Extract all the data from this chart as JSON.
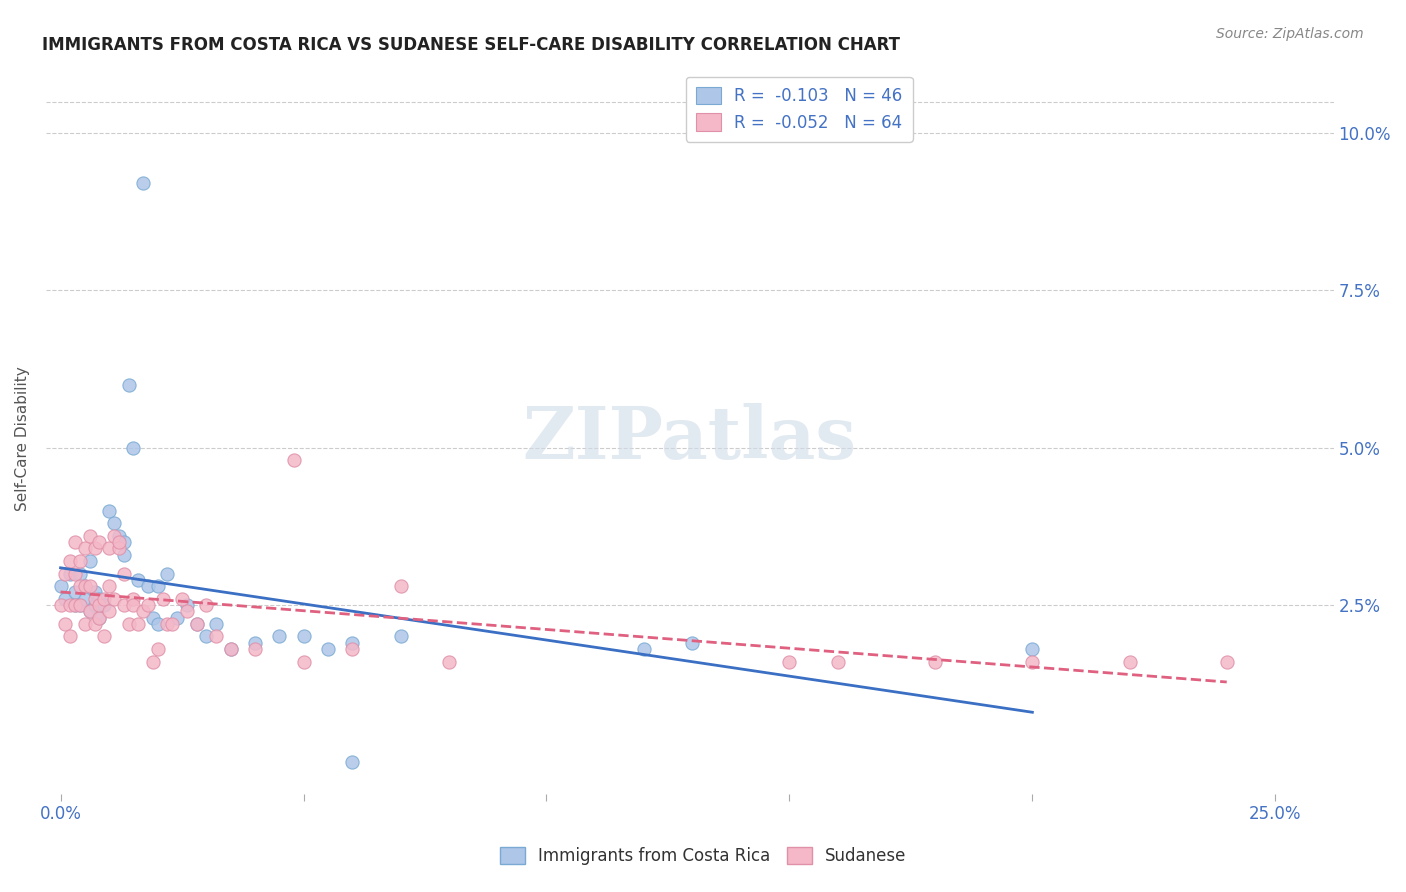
{
  "title": "IMMIGRANTS FROM COSTA RICA VS SUDANESE SELF-CARE DISABILITY CORRELATION CHART",
  "source": "Source: ZipAtlas.com",
  "ylabel": "Self-Care Disability",
  "xlim": [
    -0.003,
    0.262
  ],
  "ylim": [
    -0.005,
    0.108
  ],
  "x_tick_positions": [
    0.0,
    0.05,
    0.1,
    0.15,
    0.2,
    0.25
  ],
  "x_tick_labels": [
    "0.0%",
    "",
    "",
    "",
    "",
    "25.0%"
  ],
  "y_tick_positions": [
    0.0,
    0.025,
    0.05,
    0.075,
    0.1
  ],
  "y_tick_labels": [
    "",
    "2.5%",
    "5.0%",
    "7.5%",
    "10.0%"
  ],
  "legend_entries": [
    {
      "label": "Immigrants from Costa Rica",
      "color": "#aec6e8",
      "r": "-0.103",
      "n": "46"
    },
    {
      "label": "Sudanese",
      "color": "#f4b8c8",
      "r": "-0.052",
      "n": "64"
    }
  ],
  "costa_rica_x": [
    0.0,
    0.001,
    0.002,
    0.003,
    0.003,
    0.004,
    0.004,
    0.005,
    0.005,
    0.006,
    0.006,
    0.007,
    0.007,
    0.008,
    0.008,
    0.009,
    0.01,
    0.011,
    0.012,
    0.013,
    0.013,
    0.014,
    0.015,
    0.016,
    0.017,
    0.018,
    0.019,
    0.02,
    0.02,
    0.022,
    0.024,
    0.026,
    0.028,
    0.03,
    0.032,
    0.035,
    0.04,
    0.045,
    0.05,
    0.055,
    0.06,
    0.07,
    0.12,
    0.13,
    0.2,
    0.06
  ],
  "costa_rica_y": [
    0.028,
    0.026,
    0.03,
    0.025,
    0.027,
    0.03,
    0.025,
    0.028,
    0.026,
    0.024,
    0.032,
    0.025,
    0.027,
    0.023,
    0.026,
    0.025,
    0.04,
    0.038,
    0.036,
    0.035,
    0.033,
    0.06,
    0.05,
    0.029,
    0.092,
    0.028,
    0.023,
    0.022,
    0.028,
    0.03,
    0.023,
    0.025,
    0.022,
    0.02,
    0.022,
    0.018,
    0.019,
    0.02,
    0.02,
    0.018,
    0.019,
    0.02,
    0.018,
    0.019,
    0.018,
    0.0
  ],
  "sudanese_x": [
    0.0,
    0.001,
    0.001,
    0.002,
    0.002,
    0.002,
    0.003,
    0.003,
    0.003,
    0.004,
    0.004,
    0.004,
    0.005,
    0.005,
    0.005,
    0.006,
    0.006,
    0.006,
    0.007,
    0.007,
    0.007,
    0.008,
    0.008,
    0.008,
    0.009,
    0.009,
    0.01,
    0.01,
    0.01,
    0.011,
    0.011,
    0.012,
    0.012,
    0.013,
    0.013,
    0.014,
    0.015,
    0.015,
    0.016,
    0.017,
    0.018,
    0.019,
    0.02,
    0.021,
    0.022,
    0.023,
    0.025,
    0.026,
    0.028,
    0.03,
    0.032,
    0.035,
    0.04,
    0.048,
    0.05,
    0.06,
    0.07,
    0.08,
    0.15,
    0.16,
    0.18,
    0.2,
    0.22,
    0.24
  ],
  "sudanese_y": [
    0.025,
    0.022,
    0.03,
    0.02,
    0.025,
    0.032,
    0.025,
    0.03,
    0.035,
    0.025,
    0.028,
    0.032,
    0.022,
    0.028,
    0.034,
    0.024,
    0.028,
    0.036,
    0.022,
    0.026,
    0.034,
    0.023,
    0.025,
    0.035,
    0.02,
    0.026,
    0.024,
    0.028,
    0.034,
    0.026,
    0.036,
    0.034,
    0.035,
    0.03,
    0.025,
    0.022,
    0.026,
    0.025,
    0.022,
    0.024,
    0.025,
    0.016,
    0.018,
    0.026,
    0.022,
    0.022,
    0.026,
    0.024,
    0.022,
    0.025,
    0.02,
    0.018,
    0.018,
    0.048,
    0.016,
    0.018,
    0.028,
    0.016,
    0.016,
    0.016,
    0.016,
    0.016,
    0.016,
    0.016
  ],
  "costa_rica_color": "#aec6e8",
  "costa_rica_edge": "#7aaad4",
  "sudanese_color": "#f4b8c8",
  "sudanese_edge": "#e090a8",
  "trendline_costa_rica_color": "#3a6fc4",
  "trendline_sudanese_color": "#e06080",
  "background_color": "#ffffff",
  "grid_color": "#cccccc",
  "title_color": "#222222",
  "tick_color": "#4472c4",
  "watermark_text": "ZIPatlas",
  "watermark_color": "#d0dce8"
}
